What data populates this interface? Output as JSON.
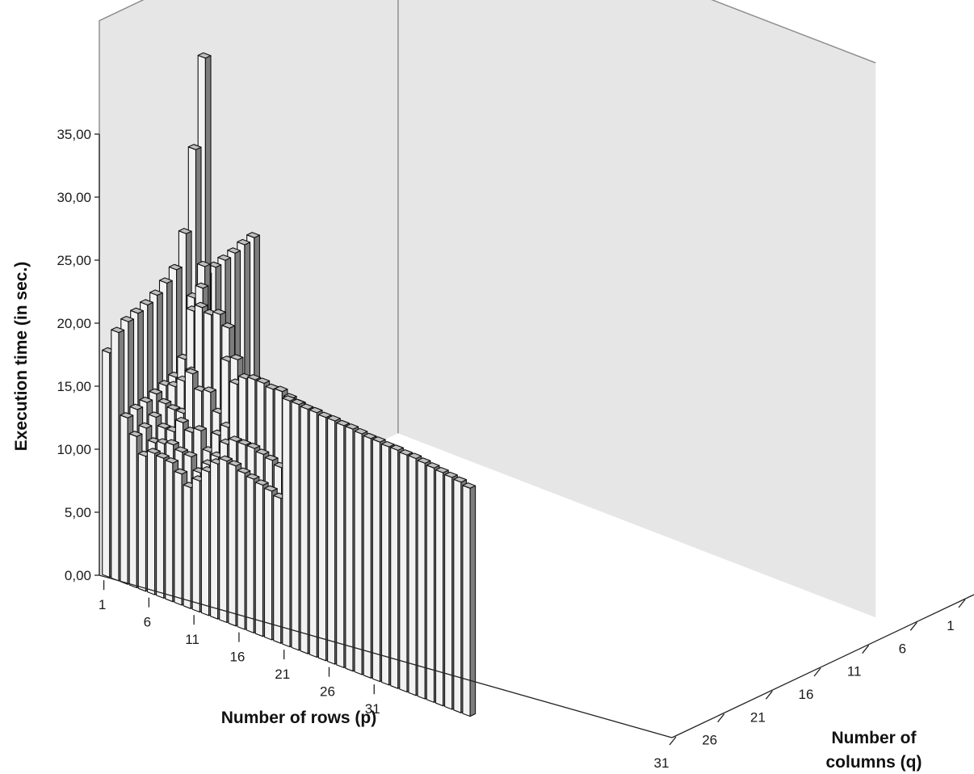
{
  "chart_data": {
    "type": "bar3d",
    "zlabel": "Execution time (in sec.)",
    "xlabel": "Number of rows (p)",
    "ylabel_lines": [
      "Number of",
      "columns (q)"
    ],
    "z_ticks": [
      "0,00",
      "5,00",
      "10,00",
      "15,00",
      "20,00",
      "25,00",
      "30,00",
      "35,00"
    ],
    "z_tick_values": [
      0,
      5,
      10,
      15,
      20,
      25,
      30,
      35
    ],
    "x_ticks": [
      "1",
      "6",
      "11",
      "16",
      "21",
      "26",
      "31"
    ],
    "x_tick_values": [
      1,
      6,
      11,
      16,
      21,
      26,
      31
    ],
    "y_ticks": [
      "1",
      "6",
      "11",
      "16",
      "21",
      "26",
      "31"
    ],
    "y_tick_values": [
      1,
      6,
      11,
      16,
      21,
      26,
      31
    ],
    "zlim": [
      0,
      35
    ],
    "colors": {
      "front_face": "#f2f2f2",
      "top_face": "#bfbfbf",
      "side_face": "#7d7d7d",
      "wall": "#e6e6e6",
      "outline": "#111111"
    },
    "bars": [
      {
        "p": 1,
        "q": 1,
        "t": 17.8
      },
      {
        "p": 1,
        "q": 2,
        "t": 18.0
      },
      {
        "p": 1,
        "q": 3,
        "t": 18.2
      },
      {
        "p": 1,
        "q": 4,
        "t": 18.5
      },
      {
        "p": 1,
        "q": 5,
        "t": 18.8
      },
      {
        "p": 1,
        "q": 6,
        "t": 19.1
      },
      {
        "p": 1,
        "q": 7,
        "t": 19.4
      },
      {
        "p": 1,
        "q": 8,
        "t": 19.6
      },
      {
        "p": 1,
        "q": 9,
        "t": 19.8
      },
      {
        "p": 1,
        "q": 10,
        "t": 20.1
      },
      {
        "p": 1,
        "q": 11,
        "t": 20.3
      },
      {
        "p": 1,
        "q": 12,
        "t": 20.6
      },
      {
        "p": 1,
        "q": 13,
        "t": 20.8
      },
      {
        "p": 1,
        "q": 14,
        "t": 21.0
      },
      {
        "p": 1,
        "q": 15,
        "t": 21.3
      },
      {
        "p": 1,
        "q": 16,
        "t": 21.5
      },
      {
        "p": 2,
        "q": 1,
        "t": 19.7
      },
      {
        "p": 2,
        "q": 2,
        "t": 20.2
      },
      {
        "p": 2,
        "q": 3,
        "t": 20.5
      },
      {
        "p": 2,
        "q": 4,
        "t": 20.8
      },
      {
        "p": 2,
        "q": 5,
        "t": 21.2
      },
      {
        "p": 2,
        "q": 6,
        "t": 21.8
      },
      {
        "p": 2,
        "q": 7,
        "t": 22.5
      },
      {
        "p": 2,
        "q": 8,
        "t": 25.0
      },
      {
        "p": 2,
        "q": 9,
        "t": 31.3
      },
      {
        "p": 2,
        "q": 10,
        "t": 38.2
      },
      {
        "p": 3,
        "q": 1,
        "t": 13.2
      },
      {
        "p": 3,
        "q": 2,
        "t": 13.5
      },
      {
        "p": 3,
        "q": 3,
        "t": 13.7
      },
      {
        "p": 3,
        "q": 4,
        "t": 14.0
      },
      {
        "p": 3,
        "q": 5,
        "t": 14.3
      },
      {
        "p": 3,
        "q": 6,
        "t": 14.6
      },
      {
        "p": 3,
        "q": 7,
        "t": 15.0
      },
      {
        "p": 3,
        "q": 8,
        "t": 17.4
      },
      {
        "p": 3,
        "q": 9,
        "t": 22.3
      },
      {
        "p": 4,
        "q": 1,
        "t": 12.0
      },
      {
        "p": 4,
        "q": 2,
        "t": 12.3
      },
      {
        "p": 4,
        "q": 3,
        "t": 12.8
      },
      {
        "p": 4,
        "q": 4,
        "t": 13.5
      },
      {
        "p": 4,
        "q": 5,
        "t": 14.5
      },
      {
        "p": 4,
        "q": 6,
        "t": 16.3
      },
      {
        "p": 4,
        "q": 7,
        "t": 20.8
      },
      {
        "p": 5,
        "q": 1,
        "t": 10.7
      },
      {
        "p": 5,
        "q": 2,
        "t": 11.4
      },
      {
        "p": 5,
        "q": 3,
        "t": 12.2
      },
      {
        "p": 5,
        "q": 4,
        "t": 13.3
      },
      {
        "p": 5,
        "q": 5,
        "t": 15.2
      },
      {
        "p": 5,
        "q": 6,
        "t": 20.4
      },
      {
        "p": 6,
        "q": 1,
        "t": 11.2
      },
      {
        "p": 6,
        "q": 2,
        "t": 11.6
      },
      {
        "p": 6,
        "q": 3,
        "t": 12.2
      },
      {
        "p": 6,
        "q": 4,
        "t": 13.3
      },
      {
        "p": 6,
        "q": 5,
        "t": 16.2
      },
      {
        "p": 6,
        "q": 6,
        "t": 22.5
      },
      {
        "p": 7,
        "q": 1,
        "t": 11.1
      },
      {
        "p": 7,
        "q": 2,
        "t": 11.8
      },
      {
        "p": 7,
        "q": 3,
        "t": 13.2
      },
      {
        "p": 7,
        "q": 4,
        "t": 16.7
      },
      {
        "p": 7,
        "q": 5,
        "t": 21.6
      },
      {
        "p": 8,
        "q": 1,
        "t": 11.0
      },
      {
        "p": 8,
        "q": 2,
        "t": 11.5
      },
      {
        "p": 8,
        "q": 3,
        "t": 12.7
      },
      {
        "p": 8,
        "q": 4,
        "t": 15.6
      },
      {
        "p": 8,
        "q": 5,
        "t": 21.3
      },
      {
        "p": 9,
        "q": 1,
        "t": 10.4
      },
      {
        "p": 9,
        "q": 2,
        "t": 11.4
      },
      {
        "p": 9,
        "q": 3,
        "t": 13.1
      },
      {
        "p": 9,
        "q": 4,
        "t": 15.8
      },
      {
        "p": 9,
        "q": 5,
        "t": 21.6
      },
      {
        "p": 10,
        "q": 1,
        "t": 9.6
      },
      {
        "p": 10,
        "q": 2,
        "t": 10.4
      },
      {
        "p": 10,
        "q": 3,
        "t": 11.7
      },
      {
        "p": 10,
        "q": 4,
        "t": 14.4
      },
      {
        "p": 10,
        "q": 5,
        "t": 20.8
      },
      {
        "p": 11,
        "q": 1,
        "t": 10.4
      },
      {
        "p": 11,
        "q": 2,
        "t": 11.3
      },
      {
        "p": 11,
        "q": 3,
        "t": 13.3
      },
      {
        "p": 11,
        "q": 4,
        "t": 18.8
      },
      {
        "p": 12,
        "q": 1,
        "t": 11.4
      },
      {
        "p": 12,
        "q": 2,
        "t": 12.2
      },
      {
        "p": 12,
        "q": 3,
        "t": 14.2
      },
      {
        "p": 12,
        "q": 4,
        "t": 19.2
      },
      {
        "p": 13,
        "q": 1,
        "t": 12.3
      },
      {
        "p": 13,
        "q": 2,
        "t": 13.5
      },
      {
        "p": 13,
        "q": 3,
        "t": 17.9
      },
      {
        "p": 14,
        "q": 1,
        "t": 12.8
      },
      {
        "p": 14,
        "q": 2,
        "t": 14.0
      },
      {
        "p": 14,
        "q": 3,
        "t": 18.6
      },
      {
        "p": 15,
        "q": 1,
        "t": 12.7
      },
      {
        "p": 15,
        "q": 2,
        "t": 14.0
      },
      {
        "p": 15,
        "q": 3,
        "t": 18.8
      },
      {
        "p": 16,
        "q": 1,
        "t": 12.4
      },
      {
        "p": 16,
        "q": 2,
        "t": 14.0
      },
      {
        "p": 16,
        "q": 3,
        "t": 18.8
      },
      {
        "p": 17,
        "q": 1,
        "t": 12.2
      },
      {
        "p": 17,
        "q": 2,
        "t": 13.8
      },
      {
        "p": 17,
        "q": 3,
        "t": 18.6
      },
      {
        "p": 18,
        "q": 1,
        "t": 12.0
      },
      {
        "p": 18,
        "q": 2,
        "t": 13.6
      },
      {
        "p": 18,
        "q": 3,
        "t": 18.7
      },
      {
        "p": 19,
        "q": 1,
        "t": 11.8
      },
      {
        "p": 19,
        "q": 2,
        "t": 13.3
      },
      {
        "p": 19,
        "q": 3,
        "t": 18.4
      },
      {
        "p": 20,
        "q": 1,
        "t": 11.5
      },
      {
        "p": 20,
        "q": 2,
        "t": 13.1
      },
      {
        "p": 20,
        "q": 3,
        "t": 18.2
      },
      {
        "p": 21,
        "q": 1,
        "t": 19.5
      },
      {
        "p": 22,
        "q": 1,
        "t": 19.5
      },
      {
        "p": 23,
        "q": 1,
        "t": 19.4
      },
      {
        "p": 24,
        "q": 1,
        "t": 19.4
      },
      {
        "p": 25,
        "q": 1,
        "t": 19.3
      },
      {
        "p": 26,
        "q": 1,
        "t": 19.3
      },
      {
        "p": 27,
        "q": 1,
        "t": 19.2
      },
      {
        "p": 28,
        "q": 1,
        "t": 19.2
      },
      {
        "p": 29,
        "q": 1,
        "t": 19.1
      },
      {
        "p": 30,
        "q": 1,
        "t": 19.0
      },
      {
        "p": 31,
        "q": 1,
        "t": 19.0
      },
      {
        "p": 32,
        "q": 1,
        "t": 18.9
      },
      {
        "p": 33,
        "q": 1,
        "t": 18.9
      },
      {
        "p": 34,
        "q": 1,
        "t": 18.8
      },
      {
        "p": 35,
        "q": 1,
        "t": 18.8
      },
      {
        "p": 36,
        "q": 1,
        "t": 18.7
      },
      {
        "p": 37,
        "q": 1,
        "t": 18.6
      },
      {
        "p": 38,
        "q": 1,
        "t": 18.5
      },
      {
        "p": 39,
        "q": 1,
        "t": 18.4
      },
      {
        "p": 40,
        "q": 1,
        "t": 18.3
      },
      {
        "p": 41,
        "q": 1,
        "t": 18.1
      }
    ]
  }
}
